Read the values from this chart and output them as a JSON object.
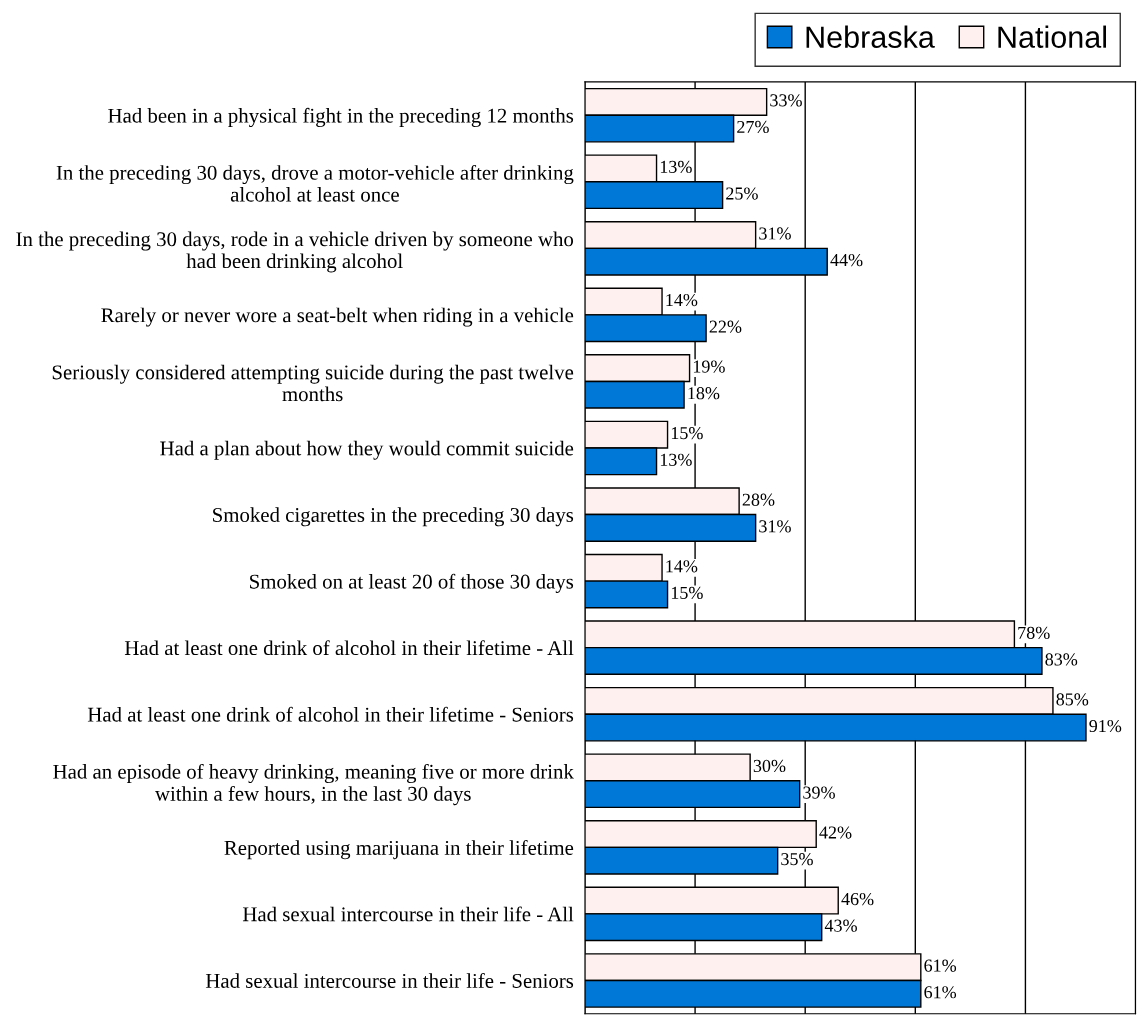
{
  "chart_data": {
    "type": "bar",
    "orientation": "horizontal",
    "categories": [
      "Had been in a physical fight in the preceding 12 months",
      "In the preceding 30 days, drove a motor-vehicle after drinking alcohol at least once",
      "In the preceding 30 days, rode in a vehicle driven by someone who had been drinking alcohol",
      "Rarely or never wore a seat-belt when riding in a vehicle",
      "Seriously considered attempting suicide during the past twelve months",
      "Had a plan about how they would commit suicide",
      "Smoked cigarettes in the preceding 30 days",
      "Smoked on at least 20 of those 30 days",
      "Had at least one drink of alcohol in their lifetime - All",
      "Had at least one drink of alcohol in their lifetime - Seniors",
      "Had an episode of heavy drinking, meaning five or more drink within a few hours, in the last 30 days",
      "Reported using marijuana in their lifetime",
      "Had sexual intercourse in their life - All",
      "Had sexual intercourse in their life - Seniors"
    ],
    "series": [
      {
        "name": "National",
        "color": "#fdf0ee",
        "values": [
          33,
          13,
          31,
          14,
          19,
          15,
          28,
          14,
          78,
          85,
          30,
          42,
          46,
          61
        ],
        "value_labels": [
          "33%",
          "13%",
          "31%",
          "14%",
          "19%",
          "15%",
          "28%",
          "14%",
          "78%",
          "85%",
          "30%",
          "42%",
          "46%",
          "61%"
        ]
      },
      {
        "name": "Nebraska",
        "color": "#0078d7",
        "values": [
          27,
          25,
          44,
          22,
          18,
          13,
          31,
          15,
          83,
          91,
          39,
          35,
          43,
          61
        ],
        "value_labels": [
          "27%",
          "25%",
          "44%",
          "22%",
          "18%",
          "13%",
          "31%",
          "15%",
          "83%",
          "91%",
          "39%",
          "35%",
          "43%",
          "61%"
        ]
      }
    ],
    "xlim": [
      0,
      100
    ],
    "xticks": [
      {
        "value": 0,
        "label": null
      },
      {
        "value": 20,
        "label": null
      },
      {
        "value": 40,
        "label": null
      },
      {
        "value": 60,
        "label": null
      },
      {
        "value": 80,
        "label": null
      },
      {
        "value": 100,
        "label": null
      }
    ],
    "grid": "x",
    "legend": "top"
  }
}
